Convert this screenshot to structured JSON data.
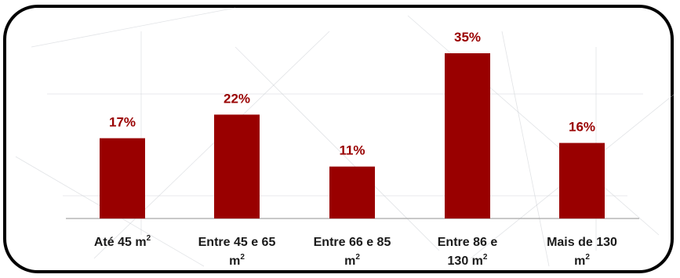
{
  "chart_data": {
    "type": "bar",
    "categories": [
      [
        "Até 45 m",
        "2"
      ],
      [
        "Entre 45 e 65",
        "m",
        "2"
      ],
      [
        "Entre 66 e 85",
        "m",
        "2"
      ],
      [
        "Entre 86 e",
        "130 m",
        "2"
      ],
      [
        "Mais de 130",
        "m",
        "2"
      ]
    ],
    "category_text": [
      "Até 45 m²",
      "Entre 45 e 65 m²",
      "Entre 66 e 85 m²",
      "Entre 86 e 130 m²",
      "Mais de 130 m²"
    ],
    "values": [
      17,
      22,
      11,
      35,
      16
    ],
    "value_labels": [
      "17%",
      "22%",
      "11%",
      "35%",
      "16%"
    ],
    "unit": "%",
    "ylim": [
      0,
      35
    ],
    "grid": false,
    "legend": "none",
    "colors": {
      "bar": "#990000",
      "label": "#990000",
      "axis": "#a6a6a6",
      "frame": "#000000"
    }
  }
}
